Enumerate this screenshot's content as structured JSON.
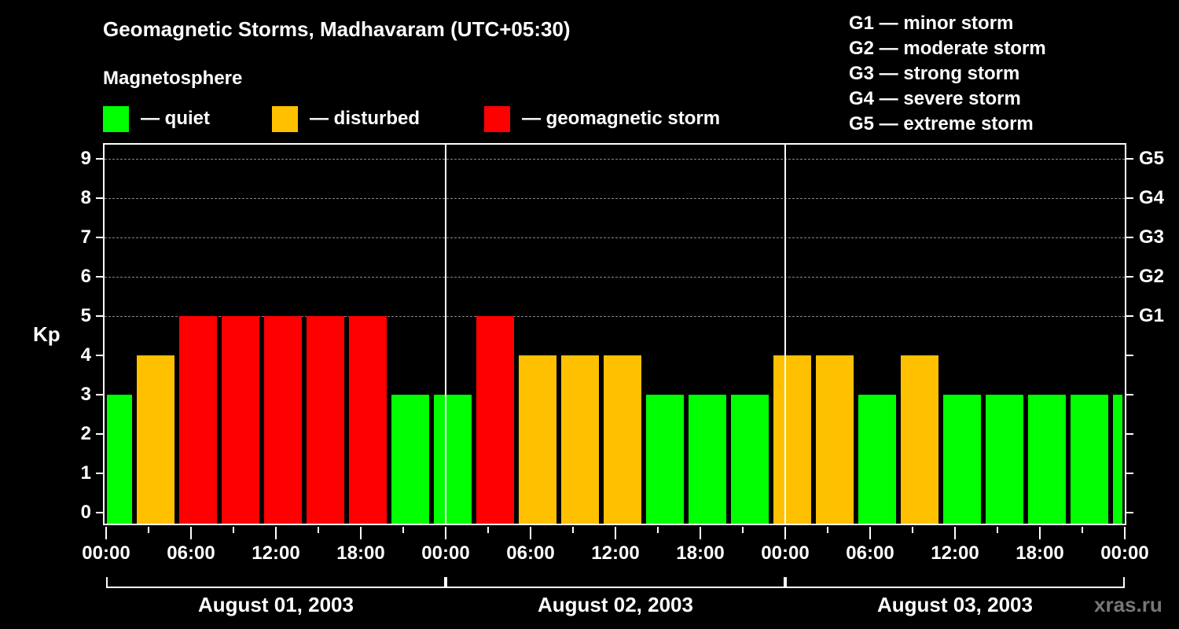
{
  "title": "Geomagnetic Storms, Madhavaram (UTC+05:30)",
  "subtitle": "Magnetosphere",
  "legend": [
    {
      "label": "— quiet",
      "color": "#00ff00"
    },
    {
      "label": "— disturbed",
      "color": "#ffc000"
    },
    {
      "label": "— geomagnetic storm",
      "color": "#ff0000"
    }
  ],
  "g_scale": [
    "G1 — minor storm",
    "G2 — moderate storm",
    "G3 — strong storm",
    "G4 — severe storm",
    "G5 — extreme storm"
  ],
  "y_axis_label": "Kp",
  "watermark": "xras.ru",
  "x_tick_labels": [
    "00:00",
    "06:00",
    "12:00",
    "18:00",
    "00:00",
    "06:00",
    "12:00",
    "18:00",
    "00:00",
    "06:00",
    "12:00",
    "18:00",
    "00:00"
  ],
  "day_labels": [
    "August 01, 2003",
    "August 02, 2003",
    "August 03, 2003"
  ],
  "right_labels": [
    "G1",
    "G2",
    "G3",
    "G4",
    "G5"
  ],
  "chart_data": {
    "type": "bar",
    "title": "Geomagnetic Storms, Madhavaram (UTC+05:30)",
    "xlabel": "",
    "ylabel": "Kp",
    "ylim": [
      0,
      9
    ],
    "yticks": [
      0,
      1,
      2,
      3,
      4,
      5,
      6,
      7,
      8,
      9
    ],
    "right_axis": {
      "G1": 5,
      "G2": 6,
      "G3": 7,
      "G4": 8,
      "G5": 9
    },
    "grid": "dashed horizontal at Kp 5-9",
    "legend": [
      {
        "name": "quiet",
        "color": "#00ff00",
        "rule": "Kp < 4"
      },
      {
        "name": "disturbed",
        "color": "#ffc000",
        "rule": "Kp = 4"
      },
      {
        "name": "geomagnetic storm",
        "color": "#ff0000",
        "rule": "Kp >= 5"
      }
    ],
    "categories": [
      "Aug 01 00:00-02:30",
      "Aug 01 02:30-05:30",
      "Aug 01 05:30-08:30",
      "Aug 01 08:30-11:30",
      "Aug 01 11:30-14:30",
      "Aug 01 14:30-17:30",
      "Aug 01 17:30-20:30",
      "Aug 01 20:30-23:30",
      "Aug 01 23:30-02:30",
      "Aug 02 02:30-05:30",
      "Aug 02 05:30-08:30",
      "Aug 02 08:30-11:30",
      "Aug 02 11:30-14:30",
      "Aug 02 14:30-17:30",
      "Aug 02 17:30-20:30",
      "Aug 02 20:30-23:30",
      "Aug 02 23:30-02:30",
      "Aug 03 02:30-05:30",
      "Aug 03 05:30-08:30",
      "Aug 03 08:30-11:30",
      "Aug 03 11:30-14:30",
      "Aug 03 14:30-17:30",
      "Aug 03 17:30-20:30",
      "Aug 03 20:30-23:30",
      "Aug 03 23:30-00:00"
    ],
    "values": [
      3,
      4,
      5,
      5,
      5,
      5,
      5,
      3,
      3,
      5,
      4,
      4,
      4,
      3,
      3,
      3,
      4,
      4,
      3,
      4,
      3,
      3,
      3,
      3,
      3
    ],
    "colors": [
      "quiet",
      "disturbed",
      "storm",
      "storm",
      "storm",
      "storm",
      "storm",
      "quiet",
      "quiet",
      "storm",
      "disturbed",
      "disturbed",
      "disturbed",
      "quiet",
      "quiet",
      "quiet",
      "disturbed",
      "disturbed",
      "quiet",
      "disturbed",
      "quiet",
      "quiet",
      "quiet",
      "quiet",
      "quiet"
    ]
  }
}
